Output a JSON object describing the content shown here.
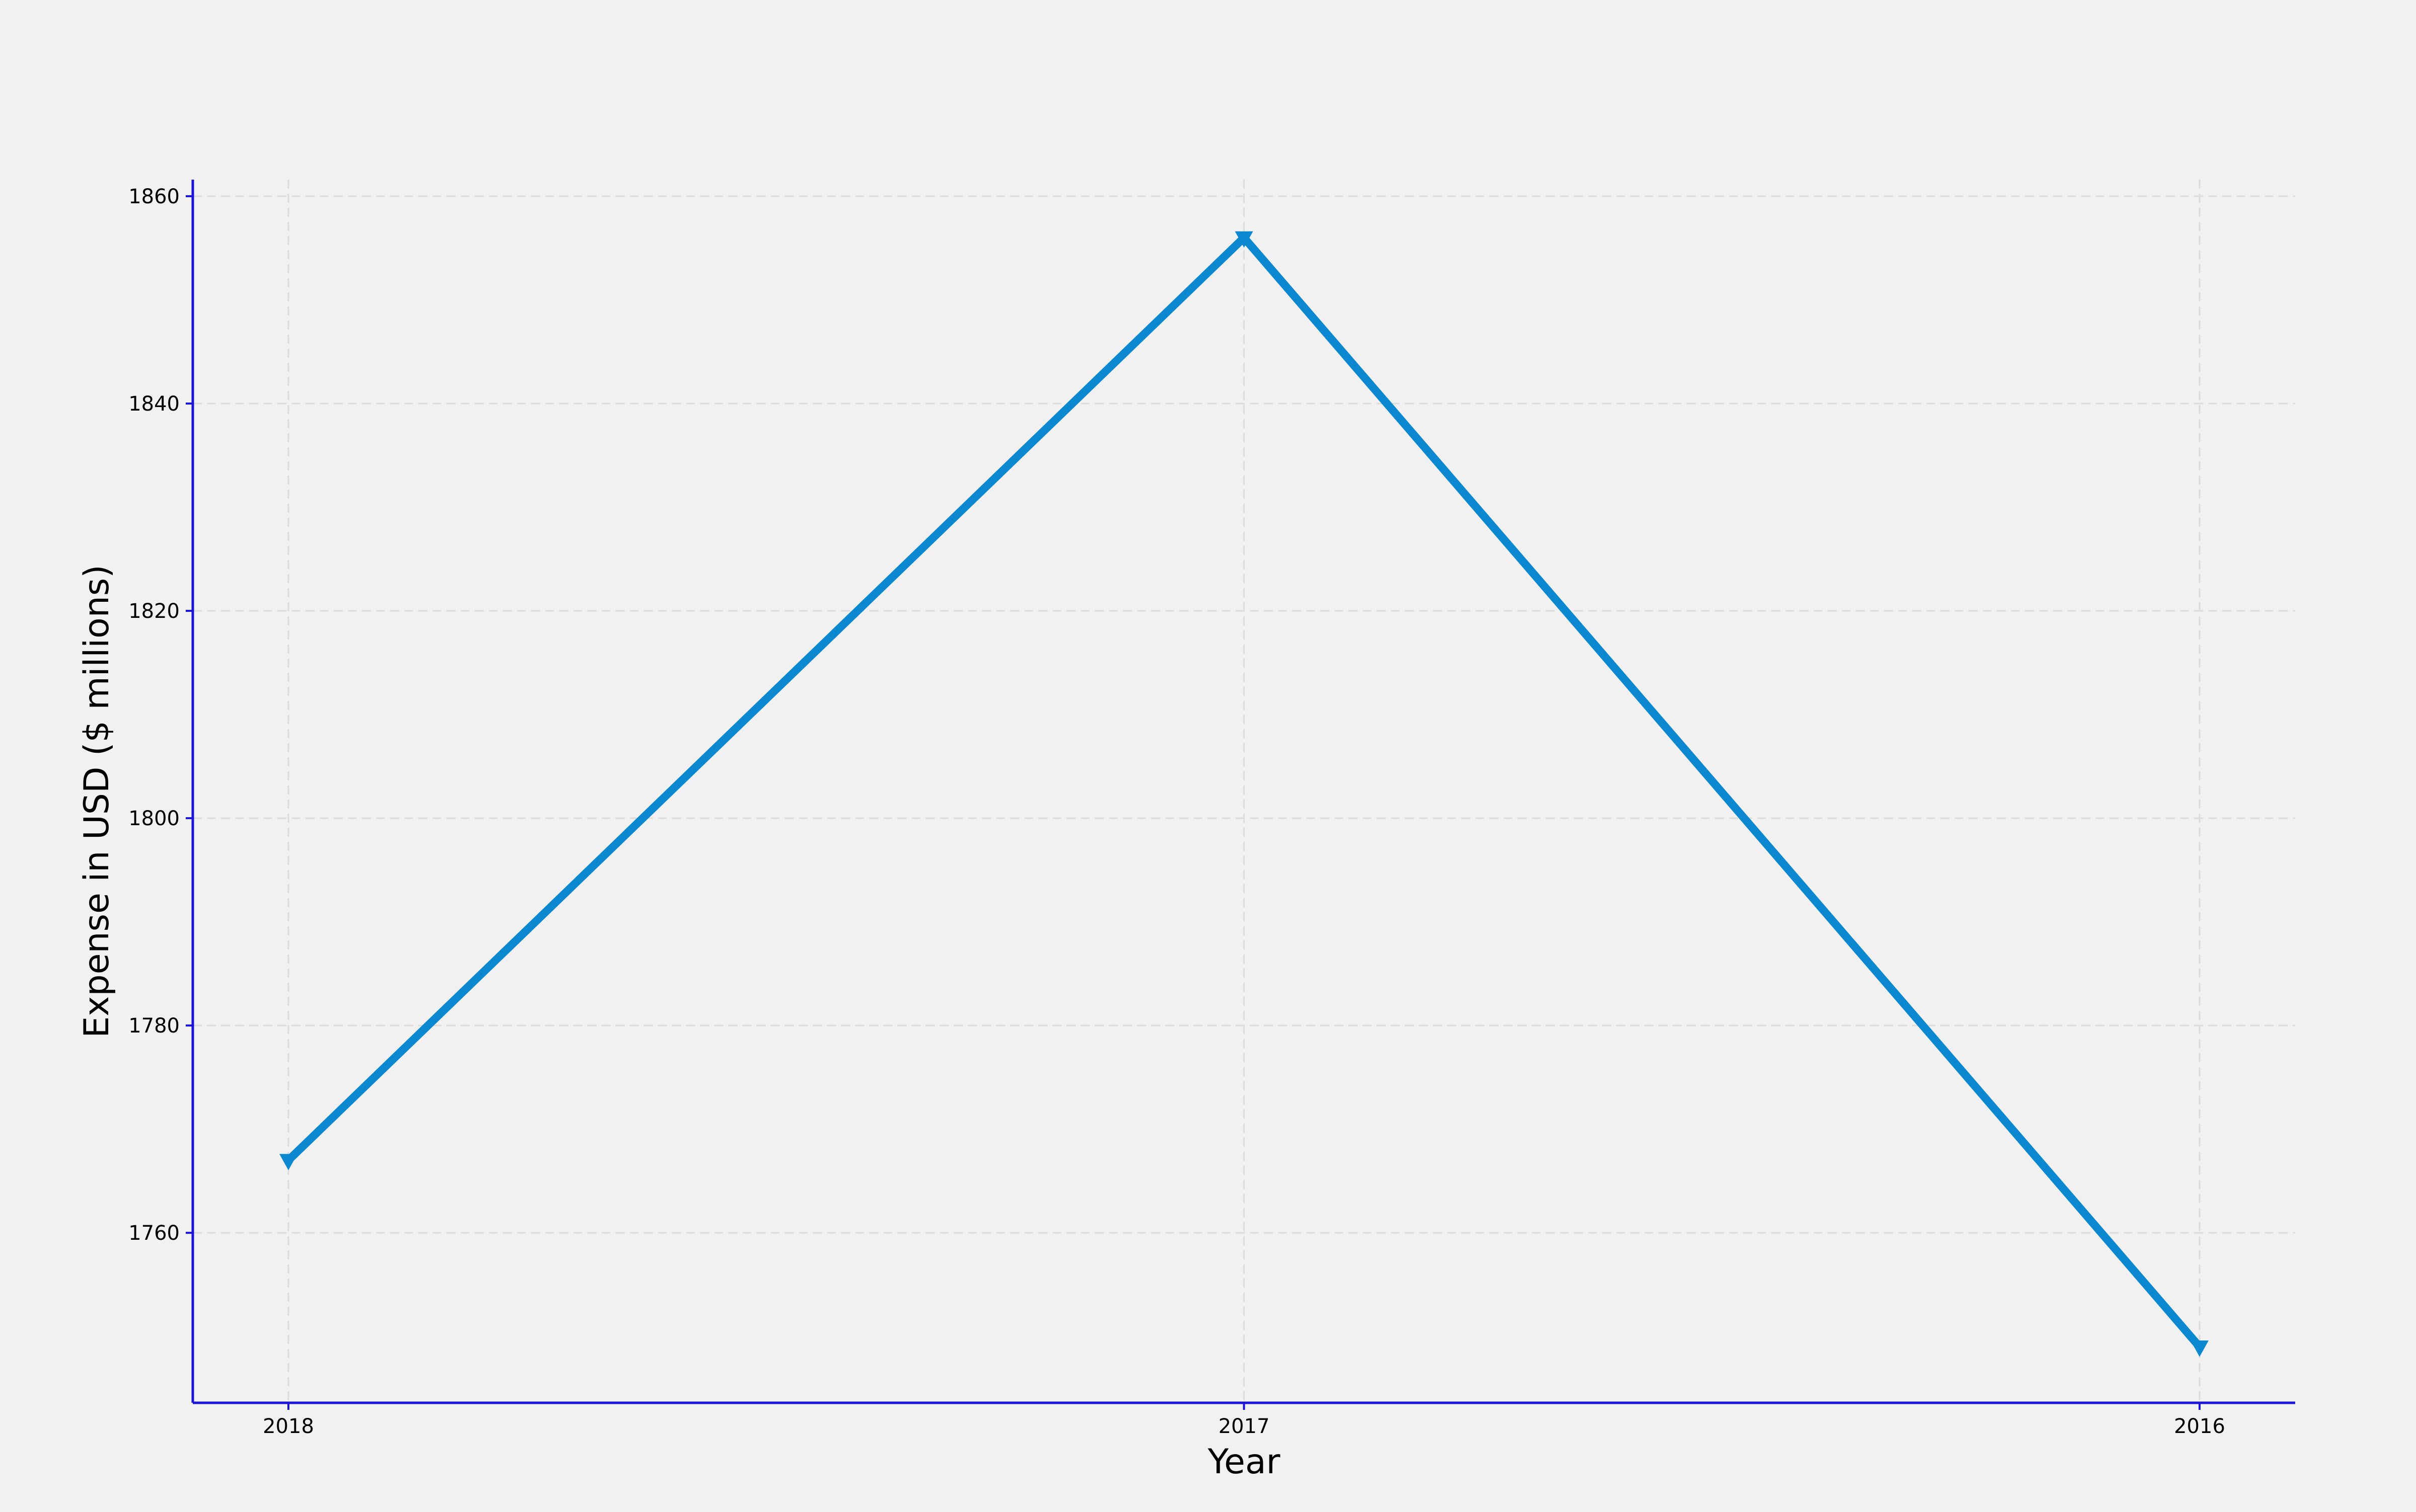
{
  "chart_data": {
    "type": "line",
    "categories": [
      "2018",
      "2017",
      "2016"
    ],
    "series": [
      {
        "values": [
          1767,
          1856,
          1749
        ]
      }
    ],
    "xlabel": "Year",
    "ylabel": "Expense in USD ($ millions)",
    "ylim": [
      1743.6,
      1861.6
    ],
    "yticks": [
      1760,
      1780,
      1800,
      1820,
      1840,
      1860
    ],
    "grid": true,
    "marker": "triangle-down",
    "colors": {
      "line": "#0b88d0",
      "axis": "#1a14d9",
      "grid": "#dcdcdc",
      "background": "#f1f1f1"
    }
  }
}
